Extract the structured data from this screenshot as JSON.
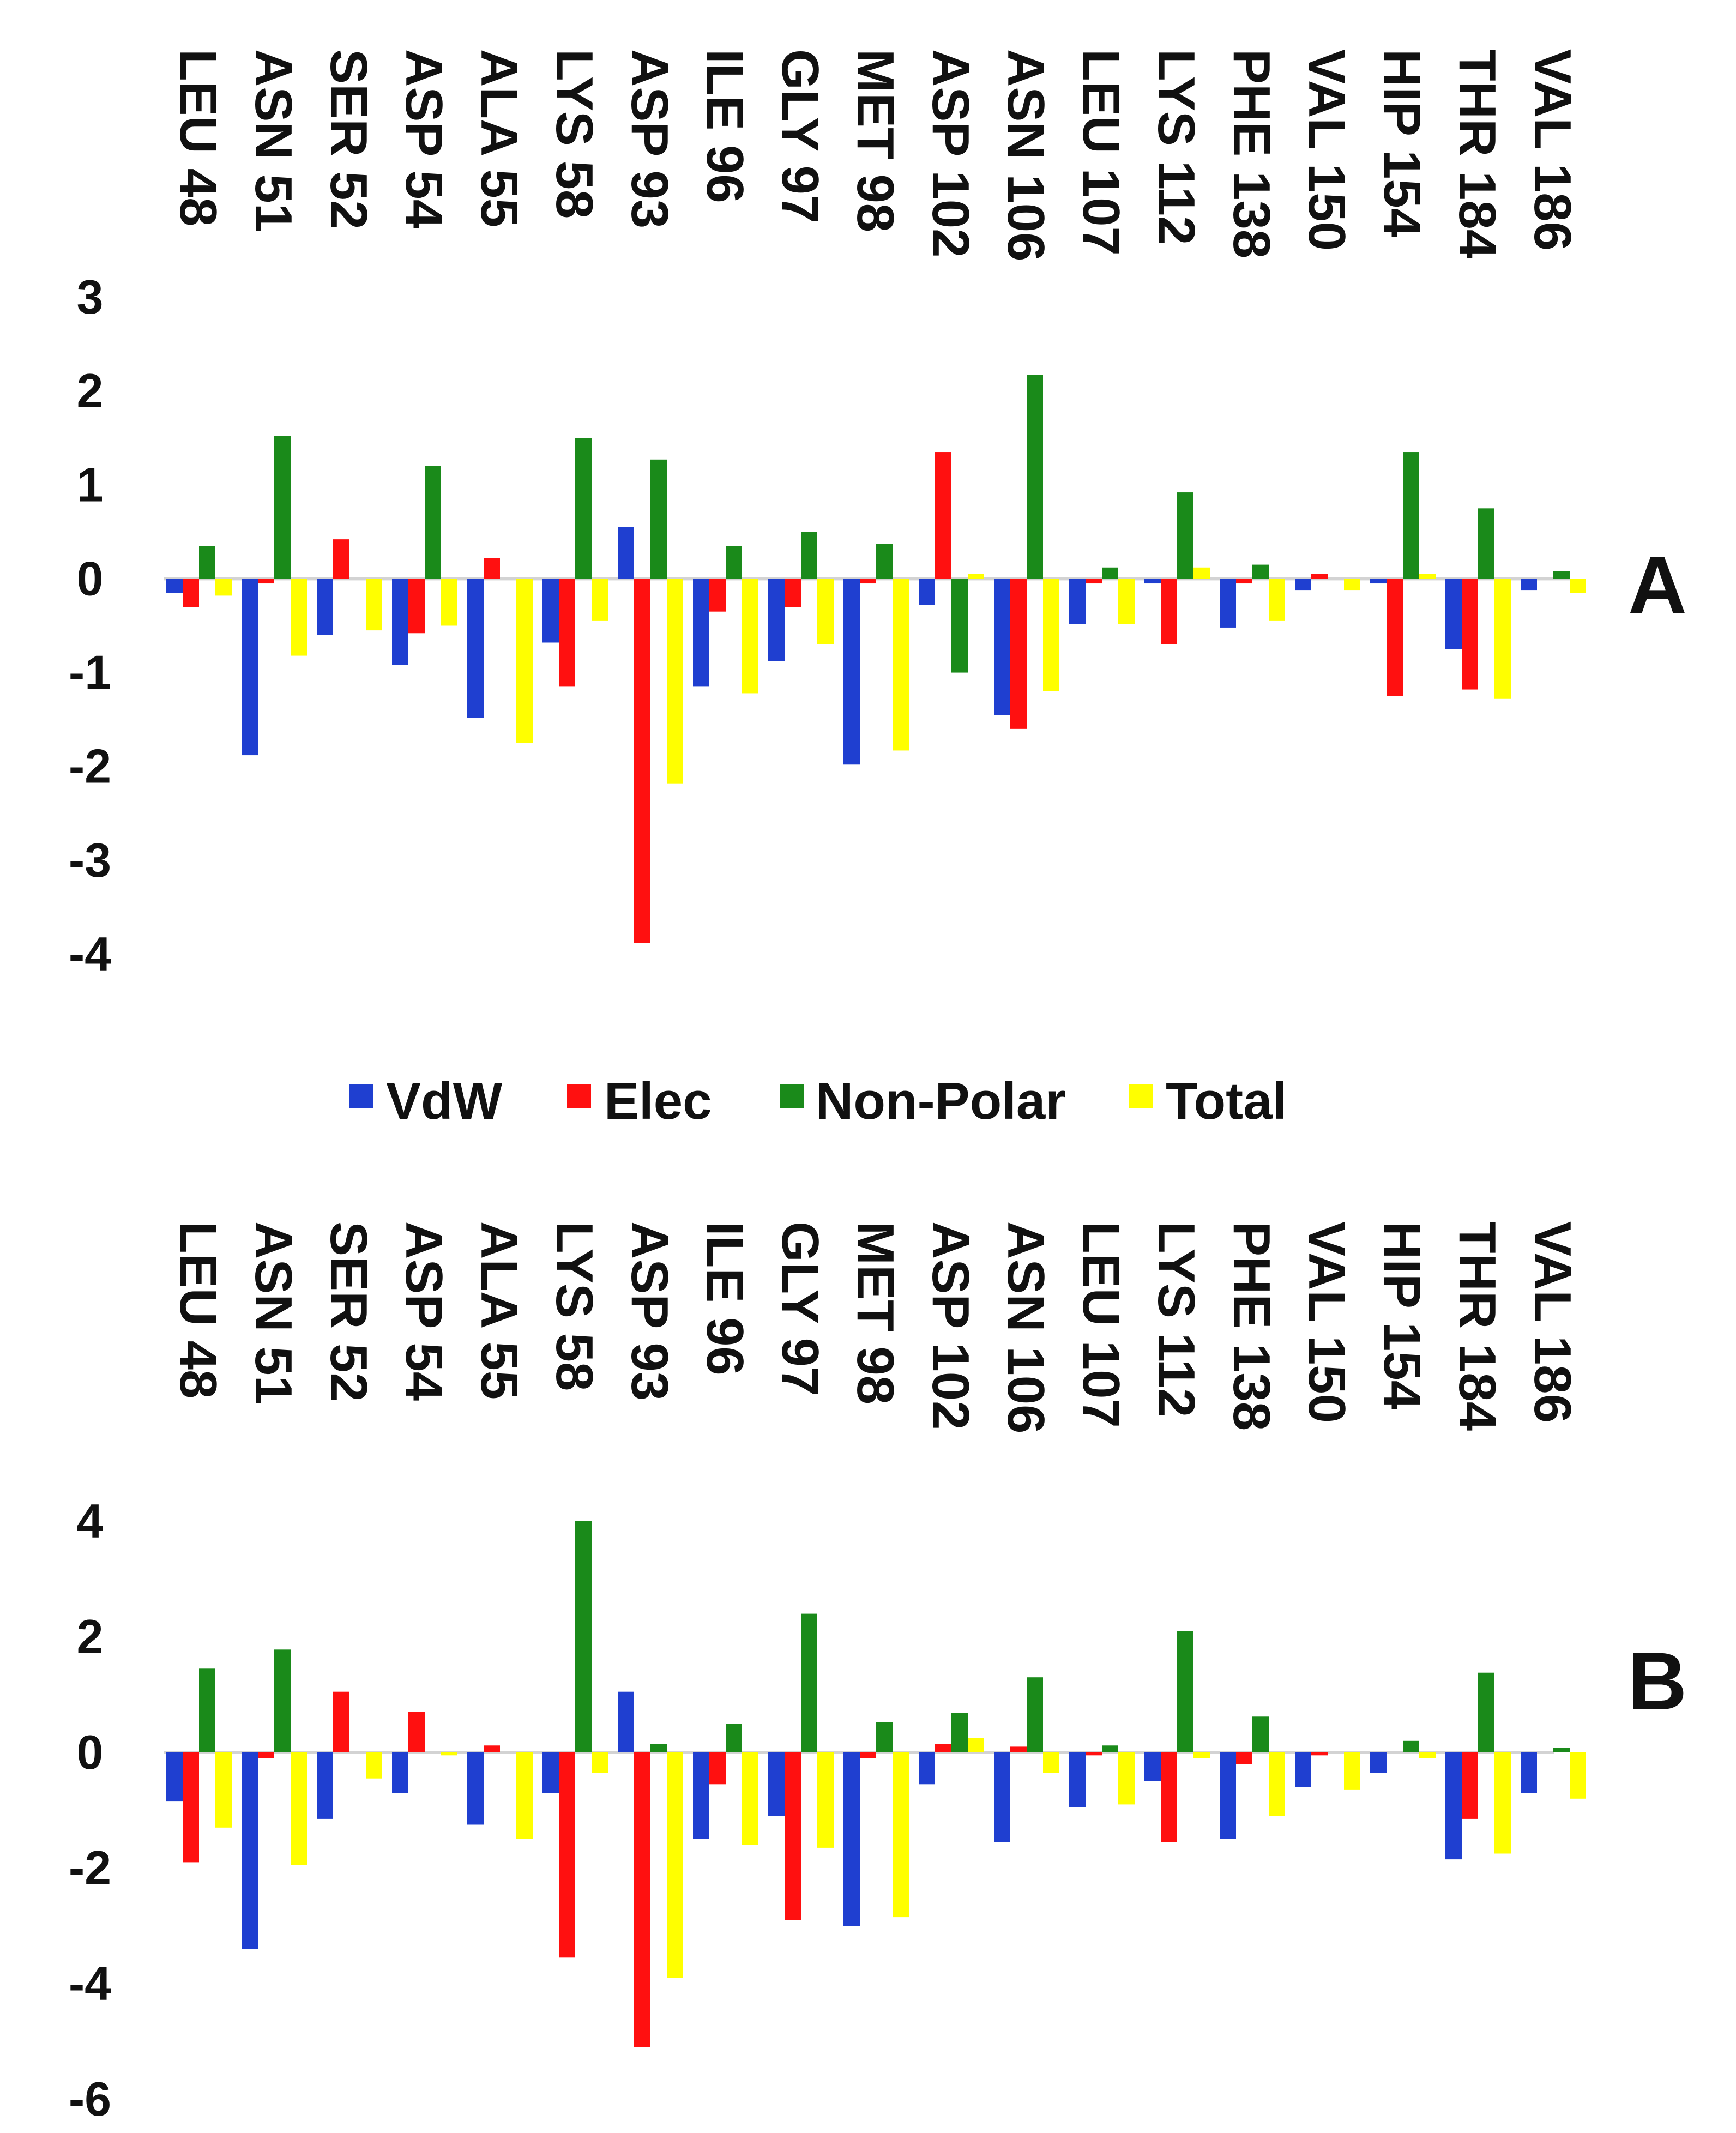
{
  "legend": [
    {
      "name": "VdW",
      "color": "#1f3fd0"
    },
    {
      "name": "Elec",
      "color": "#ff1010"
    },
    {
      "name": "Non-Polar",
      "color": "#1a8a1a"
    },
    {
      "name": "Total",
      "color": "#ffff00"
    }
  ],
  "chart_data": [
    {
      "type": "bar",
      "panel": "A",
      "categories": [
        "LEU 48",
        "ASN 51",
        "SER 52",
        "ASP 54",
        "ALA 55",
        "LYS 58",
        "ASP 93",
        "ILE 96",
        "GLY 97",
        "MET 98",
        "ASP 102",
        "ASN 106",
        "LEU 107",
        "LYS 112",
        "PHE 138",
        "VAL 150",
        "HIP 154",
        "THR 184",
        "VAL 186"
      ],
      "ylim": [
        -4,
        3
      ],
      "yticks": [
        3,
        2,
        1,
        0,
        -1,
        -2,
        -3,
        -4
      ],
      "series": [
        {
          "name": "VdW",
          "values": [
            -0.15,
            -1.88,
            -0.6,
            -0.92,
            -1.48,
            -0.68,
            0.55,
            -1.15,
            -0.88,
            -1.98,
            -0.28,
            -1.45,
            -0.48,
            -0.05,
            -0.52,
            -0.12,
            -0.05,
            -0.75,
            -0.12
          ]
        },
        {
          "name": "Elec",
          "values": [
            -0.3,
            -0.05,
            0.42,
            -0.58,
            0.22,
            -1.15,
            -3.88,
            -0.35,
            -0.3,
            -0.05,
            1.35,
            -1.6,
            -0.05,
            -0.7,
            -0.05,
            0.05,
            -1.25,
            -1.18,
            0.0
          ]
        },
        {
          "name": "Non-Polar",
          "values": [
            0.35,
            1.52,
            0.0,
            1.2,
            0.0,
            1.5,
            1.27,
            0.35,
            0.5,
            0.37,
            -1.0,
            2.17,
            0.12,
            0.92,
            0.15,
            0.0,
            1.35,
            0.75,
            0.08
          ]
        },
        {
          "name": "Total",
          "values": [
            -0.18,
            -0.82,
            -0.55,
            -0.5,
            -1.75,
            -0.45,
            -2.18,
            -1.22,
            -0.7,
            -1.83,
            0.05,
            -1.2,
            -0.48,
            0.12,
            -0.45,
            -0.12,
            0.05,
            -1.28,
            -0.15
          ]
        }
      ]
    },
    {
      "type": "bar",
      "panel": "B",
      "categories": [
        "LEU 48",
        "ASN 51",
        "SER 52",
        "ASP 54",
        "ALA 55",
        "LYS 58",
        "ASP 93",
        "ILE 96",
        "GLY 97",
        "MET 98",
        "ASP 102",
        "ASN 106",
        "LEU 107",
        "LYS 112",
        "PHE 138",
        "VAL 150",
        "HIP 154",
        "THR 184",
        "VAL 186"
      ],
      "ylim": [
        -6,
        4
      ],
      "yticks": [
        4,
        2,
        0,
        -2,
        -4,
        -6
      ],
      "series": [
        {
          "name": "VdW",
          "values": [
            -0.85,
            -3.4,
            -1.15,
            -0.7,
            -1.25,
            -0.7,
            1.05,
            -1.5,
            -1.1,
            -3.0,
            -0.55,
            -1.55,
            -0.95,
            -0.5,
            -1.5,
            -0.6,
            -0.35,
            -1.85,
            -0.7
          ]
        },
        {
          "name": "Elec",
          "values": [
            -1.9,
            -0.1,
            1.05,
            0.7,
            0.12,
            -3.55,
            -5.1,
            -0.55,
            -2.9,
            -0.1,
            0.15,
            0.1,
            -0.05,
            -1.55,
            -0.2,
            -0.05,
            0.0,
            -1.15,
            0.0
          ]
        },
        {
          "name": "Non-Polar",
          "values": [
            1.45,
            1.78,
            0.0,
            0.0,
            0.0,
            4.0,
            0.15,
            0.5,
            2.4,
            0.52,
            0.68,
            1.3,
            0.12,
            2.1,
            0.62,
            0.0,
            0.2,
            1.38,
            0.08
          ]
        },
        {
          "name": "Total",
          "values": [
            -1.3,
            -1.95,
            -0.45,
            -0.05,
            -1.5,
            -0.35,
            -3.9,
            -1.6,
            -1.65,
            -2.85,
            0.25,
            -0.35,
            -0.9,
            -0.1,
            -1.1,
            -0.65,
            -0.1,
            -1.75,
            -0.8
          ]
        }
      ]
    }
  ]
}
